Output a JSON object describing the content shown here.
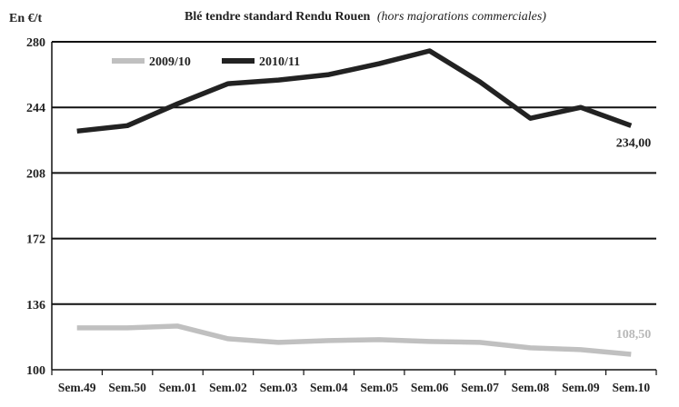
{
  "chart_data": {
    "type": "line",
    "title_main": "Blé tendre standard Rendu Rouen",
    "title_note": "(hors majorations commerciales)",
    "ylabel": "En €/t",
    "xlabel": "",
    "categories": [
      "Sem.49",
      "Sem.50",
      "Sem.01",
      "Sem.02",
      "Sem.03",
      "Sem.04",
      "Sem.05",
      "Sem.06",
      "Sem.07",
      "Sem.08",
      "Sem.09",
      "Sem.10"
    ],
    "ylim": [
      100,
      280
    ],
    "yticks": [
      "100",
      "136",
      "172",
      "208",
      "244",
      "280"
    ],
    "grid": true,
    "legend_position": "top-left",
    "series": [
      {
        "name": "2009/10",
        "color": "#c0c0c0",
        "values": [
          123,
          123,
          124,
          117,
          115,
          116,
          116.5,
          115.5,
          115,
          112,
          111,
          108.5
        ],
        "end_label": "108,50"
      },
      {
        "name": "2010/11",
        "color": "#222222",
        "values": [
          231,
          234,
          246,
          257,
          259,
          262,
          268,
          275,
          258,
          238,
          244,
          234
        ],
        "end_label": "234,00"
      }
    ]
  }
}
